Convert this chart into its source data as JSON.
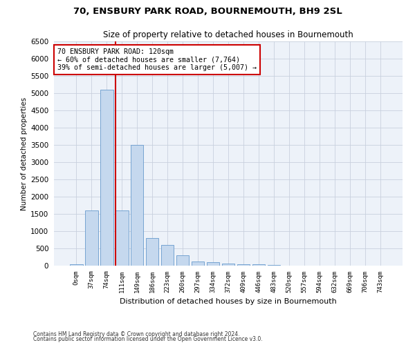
{
  "title_line1": "70, ENSBURY PARK ROAD, BOURNEMOUTH, BH9 2SL",
  "title_line2": "Size of property relative to detached houses in Bournemouth",
  "xlabel": "Distribution of detached houses by size in Bournemouth",
  "ylabel": "Number of detached properties",
  "bar_color": "#c5d8ee",
  "bar_edge_color": "#6699cc",
  "vline_color": "#cc0000",
  "vline_x": 3,
  "annotation_text": "70 ENSBURY PARK ROAD: 120sqm\n← 60% of detached houses are smaller (7,764)\n39% of semi-detached houses are larger (5,007) →",
  "annotation_box_color": "#ffffff",
  "annotation_box_edge_color": "#cc0000",
  "categories": [
    "0sqm",
    "37sqm",
    "74sqm",
    "111sqm",
    "149sqm",
    "186sqm",
    "223sqm",
    "260sqm",
    "297sqm",
    "334sqm",
    "372sqm",
    "409sqm",
    "446sqm",
    "483sqm",
    "520sqm",
    "557sqm",
    "594sqm",
    "632sqm",
    "669sqm",
    "706sqm",
    "743sqm"
  ],
  "values": [
    50,
    1600,
    5100,
    1600,
    3500,
    800,
    600,
    300,
    130,
    100,
    70,
    50,
    40,
    20,
    10,
    5,
    3,
    2,
    1,
    1,
    1
  ],
  "ylim": [
    0,
    6500
  ],
  "yticks": [
    0,
    500,
    1000,
    1500,
    2000,
    2500,
    3000,
    3500,
    4000,
    4500,
    5000,
    5500,
    6000,
    6500
  ],
  "footer_line1": "Contains HM Land Registry data © Crown copyright and database right 2024.",
  "footer_line2": "Contains public sector information licensed under the Open Government Licence v3.0.",
  "bg_color": "#edf2f9",
  "fig_bg_color": "#ffffff"
}
